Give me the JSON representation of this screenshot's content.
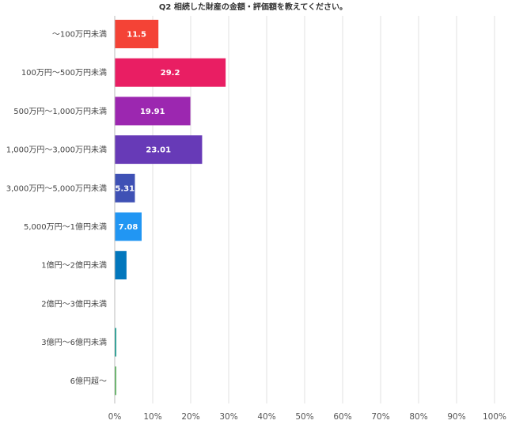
{
  "chart_data": {
    "type": "bar",
    "orientation": "horizontal",
    "title": "Q2 相続した財産の金額・評価額を教えてください。",
    "xlabel": "",
    "ylabel": "",
    "xlim": [
      0,
      100
    ],
    "x_ticks": [
      "0%",
      "10%",
      "20%",
      "30%",
      "40%",
      "50%",
      "60%",
      "70%",
      "80%",
      "90%",
      "100%"
    ],
    "grid": true,
    "categories": [
      "〜100万円未満",
      "100万円〜500万円未満",
      "500万円〜1,000万円未満",
      "1,000万円〜3,000万円未満",
      "3,000万円〜5,000万円未満",
      "5,000万円〜1億円未満",
      "1億円〜2億円未満",
      "2億円〜3億円未満",
      "3億円〜6億円未満",
      "6億円超〜"
    ],
    "values": [
      11.5,
      29.2,
      19.91,
      23.01,
      5.31,
      7.08,
      3.1,
      0,
      0.4,
      0.4
    ],
    "data_labels": [
      "11.5",
      "29.2",
      "19.91",
      "23.01",
      "5.31",
      "7.08",
      "",
      "",
      "",
      ""
    ],
    "colors": [
      "#f44336",
      "#e91e63",
      "#9c27b0",
      "#673ab7",
      "#3f51b5",
      "#2196f3",
      "#0277bd",
      "#0097a7",
      "#009688",
      "#4caf50"
    ]
  }
}
